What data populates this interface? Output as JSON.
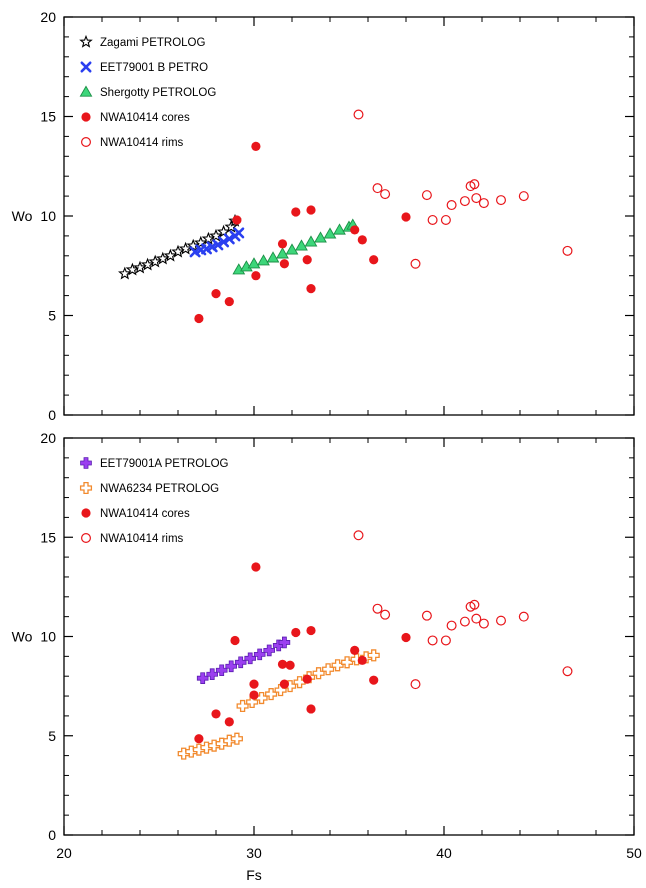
{
  "chart_data": [
    {
      "type": "scatter",
      "xlabel": "",
      "ylabel": "Wo",
      "xlim": [
        20,
        50
      ],
      "ylim": [
        0,
        20
      ],
      "x_ticks": [
        20,
        30,
        40,
        50
      ],
      "y_ticks": [
        0,
        5,
        10,
        15,
        20
      ],
      "x_tick_labels_shown": false,
      "legend_position": "top-left",
      "series": [
        {
          "name": "Zagami PETROLOG",
          "marker": "star",
          "color": "#000000",
          "points": [
            [
              23.2,
              7.1
            ],
            [
              23.6,
              7.3
            ],
            [
              24.0,
              7.4
            ],
            [
              24.4,
              7.55
            ],
            [
              24.8,
              7.7
            ],
            [
              25.2,
              7.85
            ],
            [
              25.6,
              8.0
            ],
            [
              26.0,
              8.2
            ],
            [
              26.4,
              8.35
            ],
            [
              26.8,
              8.5
            ],
            [
              27.2,
              8.65
            ],
            [
              27.6,
              8.85
            ],
            [
              28.0,
              9.0
            ],
            [
              28.4,
              9.2
            ],
            [
              28.8,
              9.45
            ],
            [
              29.0,
              9.75
            ]
          ]
        },
        {
          "name": "EET79001 B PETRO",
          "marker": "x",
          "color": "#2a3ff0",
          "points": [
            [
              26.9,
              8.2
            ],
            [
              27.2,
              8.3
            ],
            [
              27.5,
              8.35
            ],
            [
              27.8,
              8.45
            ],
            [
              28.1,
              8.55
            ],
            [
              28.4,
              8.7
            ],
            [
              28.7,
              8.85
            ],
            [
              29.0,
              9.0
            ],
            [
              29.2,
              9.15
            ]
          ]
        },
        {
          "name": "Shergotty PETROLOG",
          "marker": "triangle",
          "color": "#3dd67a",
          "points": [
            [
              29.2,
              7.3
            ],
            [
              29.6,
              7.45
            ],
            [
              30.0,
              7.6
            ],
            [
              30.5,
              7.75
            ],
            [
              31.0,
              7.9
            ],
            [
              31.5,
              8.1
            ],
            [
              32.0,
              8.3
            ],
            [
              32.5,
              8.5
            ],
            [
              33.0,
              8.7
            ],
            [
              33.5,
              8.9
            ],
            [
              34.0,
              9.1
            ],
            [
              34.5,
              9.3
            ],
            [
              35.0,
              9.45
            ],
            [
              35.2,
              9.55
            ]
          ]
        },
        {
          "name": "NWA10414 cores",
          "marker": "filled-circle",
          "color": "#e8161b",
          "points": [
            [
              27.1,
              4.85
            ],
            [
              28.0,
              6.1
            ],
            [
              28.7,
              5.7
            ],
            [
              30.1,
              13.5
            ],
            [
              30.1,
              7.0
            ],
            [
              31.5,
              8.6
            ],
            [
              31.6,
              7.6
            ],
            [
              32.2,
              10.2
            ],
            [
              32.8,
              7.8
            ],
            [
              33.0,
              10.3
            ],
            [
              33.0,
              6.35
            ],
            [
              35.3,
              9.3
            ],
            [
              35.7,
              8.8
            ],
            [
              36.3,
              7.8
            ],
            [
              38.0,
              9.95
            ],
            [
              29.1,
              9.8
            ]
          ]
        },
        {
          "name": "NWA10414 rims",
          "marker": "open-circle",
          "color": "#e8161b",
          "points": [
            [
              35.5,
              15.1
            ],
            [
              36.5,
              11.4
            ],
            [
              36.9,
              11.1
            ],
            [
              38.5,
              7.6
            ],
            [
              39.1,
              11.05
            ],
            [
              39.4,
              9.8
            ],
            [
              40.1,
              9.8
            ],
            [
              40.4,
              10.55
            ],
            [
              41.1,
              10.75
            ],
            [
              41.4,
              11.5
            ],
            [
              41.6,
              11.6
            ],
            [
              41.7,
              10.9
            ],
            [
              42.1,
              10.65
            ],
            [
              43.0,
              10.8
            ],
            [
              44.2,
              11.0
            ],
            [
              46.5,
              8.25
            ]
          ]
        }
      ]
    },
    {
      "type": "scatter",
      "xlabel": "Fs",
      "ylabel": "Wo",
      "xlim": [
        20,
        50
      ],
      "ylim": [
        0,
        20
      ],
      "x_ticks": [
        20,
        30,
        40,
        50
      ],
      "y_ticks": [
        0,
        5,
        10,
        15,
        20
      ],
      "x_tick_labels_shown": true,
      "legend_position": "top-left",
      "series": [
        {
          "name": "EET79001A PETROLOG",
          "marker": "plus",
          "color": "#9b3ff0",
          "points": [
            [
              27.3,
              7.9
            ],
            [
              27.8,
              8.1
            ],
            [
              28.3,
              8.3
            ],
            [
              28.8,
              8.5
            ],
            [
              29.3,
              8.7
            ],
            [
              29.8,
              8.9
            ],
            [
              30.3,
              9.1
            ],
            [
              30.8,
              9.3
            ],
            [
              31.3,
              9.55
            ],
            [
              31.6,
              9.7
            ]
          ]
        },
        {
          "name": "NWA6234 PETROLOG",
          "marker": "open-plus",
          "color": "#f28a2e",
          "points": [
            [
              26.3,
              4.1
            ],
            [
              26.7,
              4.2
            ],
            [
              27.1,
              4.3
            ],
            [
              27.5,
              4.4
            ],
            [
              27.9,
              4.5
            ],
            [
              28.3,
              4.6
            ],
            [
              28.7,
              4.75
            ],
            [
              29.1,
              4.85
            ],
            [
              29.4,
              6.5
            ],
            [
              29.9,
              6.7
            ],
            [
              30.4,
              6.9
            ],
            [
              30.9,
              7.1
            ],
            [
              31.4,
              7.3
            ],
            [
              31.9,
              7.5
            ],
            [
              32.4,
              7.7
            ],
            [
              32.9,
              7.95
            ],
            [
              33.4,
              8.15
            ],
            [
              33.9,
              8.35
            ],
            [
              34.4,
              8.55
            ],
            [
              34.9,
              8.7
            ],
            [
              35.4,
              8.85
            ],
            [
              35.9,
              8.95
            ],
            [
              36.3,
              9.05
            ]
          ]
        },
        {
          "name": "NWA10414 cores",
          "marker": "filled-circle",
          "color": "#e8161b",
          "points": [
            [
              27.1,
              4.85
            ],
            [
              28.0,
              6.1
            ],
            [
              28.7,
              5.7
            ],
            [
              29.0,
              9.8
            ],
            [
              30.1,
              13.5
            ],
            [
              30.0,
              7.6
            ],
            [
              30.0,
              7.05
            ],
            [
              31.5,
              8.6
            ],
            [
              31.6,
              7.6
            ],
            [
              31.9,
              8.55
            ],
            [
              32.2,
              10.2
            ],
            [
              32.8,
              7.85
            ],
            [
              33.0,
              10.3
            ],
            [
              33.0,
              6.35
            ],
            [
              35.3,
              9.3
            ],
            [
              35.7,
              8.8
            ],
            [
              36.3,
              7.8
            ],
            [
              38.0,
              9.95
            ]
          ]
        },
        {
          "name": "NWA10414 rims",
          "marker": "open-circle",
          "color": "#e8161b",
          "points": [
            [
              35.5,
              15.1
            ],
            [
              36.5,
              11.4
            ],
            [
              36.9,
              11.1
            ],
            [
              38.5,
              7.6
            ],
            [
              39.1,
              11.05
            ],
            [
              39.4,
              9.8
            ],
            [
              40.1,
              9.8
            ],
            [
              40.4,
              10.55
            ],
            [
              41.1,
              10.75
            ],
            [
              41.4,
              11.5
            ],
            [
              41.6,
              11.6
            ],
            [
              41.7,
              10.9
            ],
            [
              42.1,
              10.65
            ],
            [
              43.0,
              10.8
            ],
            [
              44.2,
              11.0
            ],
            [
              46.5,
              8.25
            ]
          ]
        }
      ]
    }
  ]
}
